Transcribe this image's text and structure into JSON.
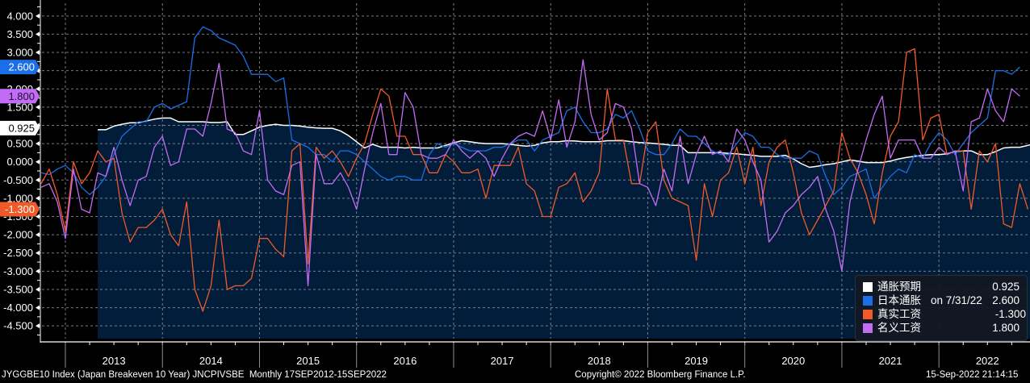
{
  "chart_data": {
    "type": "line",
    "title": "",
    "xlabel": "",
    "ylabel": "",
    "ylim": [
      -4.85,
      4.35
    ],
    "yticks": [
      "4.000",
      "3.500",
      "3.000",
      "2.500",
      "2.000",
      "1.500",
      "1.000",
      "0.500",
      "0.000",
      "-0.500",
      "-1.000",
      "-1.500",
      "-2.000",
      "-2.500",
      "-3.000",
      "-3.500",
      "-4.000",
      "-4.500"
    ],
    "ytick_values": [
      4.0,
      3.5,
      3.0,
      2.5,
      2.0,
      1.5,
      1.0,
      0.5,
      0.0,
      -0.5,
      -1.0,
      -1.5,
      -2.0,
      -2.5,
      -3.0,
      -3.5,
      -4.0,
      -4.5
    ],
    "xticks": [
      "2013",
      "2014",
      "2015",
      "2016",
      "2017",
      "2018",
      "2019",
      "2020",
      "2021",
      "2022"
    ],
    "x_unit": "month",
    "x_start": "2013-01",
    "grid": true,
    "legend_position": "bottom-right",
    "series": [
      {
        "name": "通胀预期",
        "color": "#ffffff",
        "fill": "#021d3a",
        "start": "2013-05",
        "last_value": "0.925",
        "values": [
          0.88,
          0.88,
          0.98,
          1.03,
          1.07,
          1.07,
          1.12,
          1.17,
          1.2,
          1.2,
          1.1,
          1.1,
          1.1,
          1.1,
          1.08,
          1.08,
          1.1,
          0.75,
          0.75,
          0.85,
          0.95,
          1.0,
          1.03,
          1.0,
          1.0,
          0.98,
          0.95,
          0.93,
          0.92,
          0.92,
          0.85,
          0.72,
          0.55,
          0.38,
          0.48,
          0.4,
          0.4,
          0.4,
          0.38,
          0.4,
          0.38,
          0.38,
          0.38,
          0.45,
          0.52,
          0.58,
          0.55,
          0.52,
          0.5,
          0.5,
          0.5,
          0.48,
          0.45,
          0.43,
          0.45,
          0.52,
          0.55,
          0.55,
          0.58,
          0.57,
          0.55,
          0.55,
          0.55,
          0.58,
          0.58,
          0.58,
          0.55,
          0.53,
          0.52,
          0.5,
          0.48,
          0.45,
          0.45,
          0.25,
          0.25,
          0.25,
          0.25,
          0.25,
          0.23,
          0.22,
          0.2,
          0.18,
          0.15,
          0.15,
          0.15,
          0.18,
          0.08,
          -0.05,
          -0.15,
          -0.12,
          -0.08,
          -0.05,
          0.0,
          0.05,
          0.02,
          -0.02,
          -0.02,
          -0.02,
          0.02,
          0.08,
          0.12,
          0.15,
          0.18,
          0.2,
          0.2,
          0.22,
          0.28,
          0.3,
          0.3,
          0.2,
          0.2,
          0.28,
          0.38,
          0.4,
          0.4,
          0.45,
          0.52,
          0.6,
          0.68,
          0.78,
          0.9,
          0.88,
          0.88,
          0.88,
          0.85,
          0.9,
          0.925
        ]
      },
      {
        "name": "日本通胀",
        "color": "#1a6fe8",
        "start": "2012-10",
        "last_value": "2.600",
        "legend_suffix": "on 7/31/22",
        "values": [
          -0.3,
          -0.35,
          -0.2,
          -0.1,
          -0.3,
          -0.7,
          -0.9,
          -0.7,
          -0.4,
          0.2,
          0.7,
          0.9,
          1.1,
          1.1,
          1.5,
          1.6,
          1.45,
          1.55,
          1.65,
          3.4,
          3.7,
          3.6,
          3.4,
          3.3,
          3.2,
          2.9,
          2.4,
          2.4,
          2.4,
          2.2,
          2.3,
          0.6,
          0.5,
          0.4,
          0.2,
          0.2,
          0.0,
          0.3,
          0.3,
          0.2,
          0.0,
          -0.2,
          -0.4,
          -0.5,
          -0.4,
          -0.4,
          -0.5,
          -0.5,
          0.2,
          0.5,
          0.4,
          0.5,
          0.4,
          0.3,
          0.3,
          0.3,
          0.4,
          0.4,
          0.5,
          0.6,
          0.6,
          0.3,
          0.6,
          0.7,
          0.8,
          1.4,
          1.5,
          1.1,
          0.8,
          0.8,
          0.9,
          1.3,
          1.2,
          1.4,
          0.9,
          0.3,
          0.2,
          0.2,
          0.5,
          0.9,
          0.7,
          0.7,
          0.5,
          0.3,
          0.2,
          0.2,
          0.5,
          0.8,
          0.7,
          0.4,
          0.4,
          0.2,
          0.1,
          0.1,
          0.1,
          0.3,
          0.2,
          -0.4,
          -0.9,
          -0.7,
          -0.4,
          -0.3,
          -0.2,
          -1.0,
          -0.7,
          -0.4,
          -0.2,
          -0.3,
          0.2,
          0.1,
          0.5,
          0.8,
          0.6,
          0.2,
          0.5,
          0.8,
          1.0,
          1.2,
          2.5,
          2.5,
          2.4,
          2.6
        ]
      },
      {
        "name": "真实工资",
        "color": "#f05a28",
        "start": "2012-10",
        "last_value": "-1.300",
        "values": [
          -0.6,
          -0.2,
          -0.9,
          -1.9,
          0.0,
          -0.6,
          -0.3,
          0.3,
          0.0,
          0.1,
          -1.4,
          -2.2,
          -1.8,
          -1.8,
          -1.6,
          -1.3,
          -2.0,
          -2.3,
          -1.1,
          -3.5,
          -4.1,
          -3.4,
          -1.6,
          -3.5,
          -3.4,
          -3.4,
          -3.2,
          -2.1,
          -2.1,
          -2.4,
          -2.6,
          0.3,
          0.5,
          -2.8,
          0.4,
          0.1,
          0.3,
          0.0,
          -0.4,
          0.1,
          0.5,
          1.3,
          2.0,
          1.8,
          0.7,
          0.7,
          0.2,
          0.2,
          -0.3,
          -0.3,
          0.2,
          0.0,
          -0.3,
          -0.3,
          -0.2,
          -1.0,
          -0.1,
          -0.1,
          -0.1,
          0.4,
          -0.6,
          -0.8,
          -1.5,
          -1.5,
          -0.7,
          -0.6,
          -0.3,
          -1.1,
          -0.8,
          -0.3,
          2.0,
          0.6,
          0.6,
          -0.6,
          -0.6,
          0.8,
          1.1,
          -0.5,
          -1.0,
          -1.1,
          -1.2,
          -2.7,
          -0.6,
          -1.5,
          -0.5,
          -0.3,
          0.4,
          -0.6,
          0.4,
          -1.2,
          0.0,
          0.4,
          0.6,
          -0.3,
          -1.4,
          -2.0,
          -1.6,
          -1.2,
          -0.8,
          0.8,
          0.1,
          -0.3,
          -0.9,
          -1.7,
          -0.3,
          0.7,
          1.1,
          3.0,
          3.1,
          0.6,
          1.2,
          1.3,
          0.2,
          0.3,
          0.3,
          -1.3,
          0.3,
          0.0,
          0.5,
          -1.7,
          -1.8,
          -0.6,
          -1.3
        ]
      },
      {
        "name": "名义工资",
        "color": "#c46bf5",
        "start": "2012-10",
        "last_value": "1.800",
        "values": [
          -0.7,
          -0.6,
          -1.1,
          -2.1,
          -0.2,
          -1.3,
          -1.4,
          -0.3,
          -0.4,
          0.4,
          -0.5,
          -1.2,
          -0.5,
          -0.4,
          0.4,
          0.7,
          -0.1,
          0.0,
          0.9,
          0.9,
          0.7,
          1.6,
          2.7,
          0.9,
          0.8,
          0.3,
          0.2,
          1.4,
          -0.5,
          -0.8,
          -0.9,
          -0.1,
          0.0,
          -3.4,
          0.2,
          -0.6,
          -0.6,
          -0.3,
          -0.7,
          -1.3,
          -0.2,
          0.8,
          1.6,
          0.2,
          0.2,
          1.9,
          1.5,
          0.2,
          0.1,
          0.1,
          0.2,
          0.6,
          0.3,
          0.1,
          0.3,
          0.1,
          -0.4,
          0.1,
          0.5,
          0.7,
          0.8,
          0.7,
          1.4,
          0.6,
          1.7,
          0.4,
          1.1,
          2.8,
          1.3,
          0.6,
          0.8,
          1.6,
          1.5,
          0.9,
          -0.6,
          -0.7,
          -1.2,
          -0.2,
          -0.8,
          0.7,
          -0.6,
          0.2,
          0.7,
          0.2,
          0.3,
          0.0,
          0.9,
          0.6,
          0.0,
          -0.5,
          -2.2,
          -1.9,
          -1.4,
          -1.2,
          -0.9,
          -0.7,
          -0.4,
          -1.3,
          -1.9,
          -3.0,
          -1.1,
          -0.2,
          0.6,
          1.3,
          1.8,
          0.1,
          0.6,
          0.6,
          0.6,
          0.1,
          0.1,
          0.4,
          0.2,
          0.3,
          -0.8,
          1.1,
          1.2,
          2.0,
          1.4,
          1.1,
          2.0,
          1.8
        ]
      }
    ]
  },
  "axis_tags": [
    {
      "label": "2.600",
      "series": "日本通胀",
      "value": 2.6
    },
    {
      "label": "1.800",
      "series": "名义工资",
      "value": 1.8
    },
    {
      "label": "0.925",
      "series": "通胀预期",
      "value": 0.925
    },
    {
      "label": "-1.300",
      "series": "真实工资",
      "value": -1.3
    }
  ],
  "legend": {
    "items": [
      {
        "name": "通胀预期",
        "on": "",
        "value": "0.925",
        "color": "#ffffff"
      },
      {
        "name": "日本通胀",
        "on": "on 7/31/22",
        "value": "2.600",
        "color": "#1a6fe8"
      },
      {
        "name": "真实工资",
        "on": "",
        "value": "-1.300",
        "color": "#f05a28"
      },
      {
        "name": "名义工资",
        "on": "",
        "value": "1.800",
        "color": "#c46bf5"
      }
    ]
  },
  "footer": {
    "left": "JYGGBE10 Index (Japan Breakeven 10 Year) JNCPIVSBE  Monthly 17SEP2012-15SEP2022",
    "center": "Copyright© 2022 Bloomberg Finance L.P.",
    "right": "15-Sep-2022 21:14:15"
  }
}
